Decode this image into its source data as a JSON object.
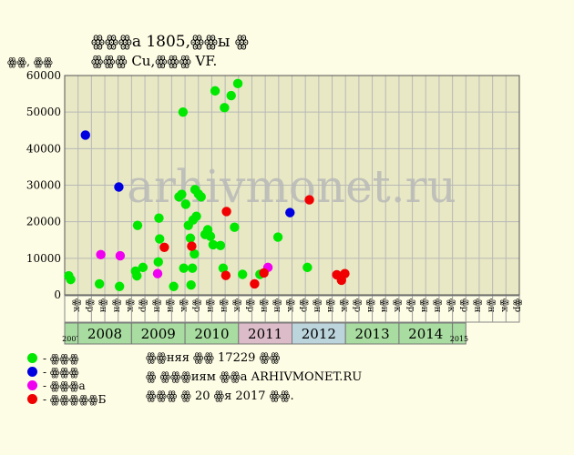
{
  "chart_data": {
    "type": "scatter",
    "title_line1": "ꙮꙮꙮa 1805,ꙮꙮы ꙮ",
    "title_line2": "ꙮꙮꙮ Cu,ꙮꙮꙮ VF.",
    "ylabel": "ꙮꙮ, ꙮꙮ",
    "watermark": "arhivmonet.ru",
    "ylim": [
      0,
      60000
    ],
    "yticks": [
      0,
      10000,
      20000,
      30000,
      40000,
      50000,
      60000
    ],
    "grid": true,
    "colors": {
      "plot_bg": "#e8e8c4",
      "grid": "#b8b8b8",
      "green": "#00e800",
      "blue": "#0000e0",
      "magenta": "#f000f0",
      "red": "#f00000",
      "year_even": "#a8dca0",
      "year_2011": "#dcbcc8",
      "year_2012": "#bcd4dc",
      "year_edge": "#a8dca0"
    },
    "years": [
      {
        "label": "2007",
        "small": true,
        "color_key": "year_edge"
      },
      {
        "label": "2008",
        "small": false,
        "color_key": "year_even"
      },
      {
        "label": "2009",
        "small": false,
        "color_key": "year_even"
      },
      {
        "label": "2010",
        "small": false,
        "color_key": "year_even"
      },
      {
        "label": "2011",
        "small": false,
        "color_key": "year_2011"
      },
      {
        "label": "2012",
        "small": false,
        "color_key": "year_2012"
      },
      {
        "label": "2013",
        "small": false,
        "color_key": "year_even"
      },
      {
        "label": "2014",
        "small": false,
        "color_key": "year_even"
      },
      {
        "label": "2015",
        "small": true,
        "color_key": "year_edge"
      }
    ],
    "month_labels": [
      "ꙮк",
      "ꙮр",
      "ꙮн",
      "ꙮн",
      "ꙮк",
      "ꙮр",
      "ꙮн",
      "ꙮн",
      "ꙮк",
      "ꙮр",
      "ꙮн",
      "ꙮн",
      "ꙮк",
      "ꙮр",
      "ꙮн",
      "ꙮн",
      "ꙮк",
      "ꙮр",
      "ꙮн",
      "ꙮн",
      "ꙮк",
      "ꙮр",
      "ꙮн",
      "ꙮн",
      "ꙮк",
      "ꙮр",
      "ꙮн",
      "ꙮн",
      "ꙮк",
      "ꙮр",
      "ꙮн",
      "ꙮн",
      "ꙮк",
      "ꙮр"
    ],
    "series": [
      {
        "name": "- ꙮꙮꙮ",
        "color_key": "green",
        "points": [
          [
            0.3,
            5200
          ],
          [
            0.45,
            4200
          ],
          [
            2.6,
            3000
          ],
          [
            4.1,
            2300
          ],
          [
            5.3,
            6500
          ],
          [
            5.4,
            5200
          ],
          [
            5.45,
            19000
          ],
          [
            5.85,
            7500
          ],
          [
            7.0,
            9000
          ],
          [
            7.05,
            21000
          ],
          [
            7.1,
            15300
          ],
          [
            8.15,
            2300
          ],
          [
            8.55,
            26800
          ],
          [
            8.75,
            27500
          ],
          [
            8.85,
            50000
          ],
          [
            8.9,
            7300
          ],
          [
            9.05,
            24800
          ],
          [
            9.25,
            19000
          ],
          [
            9.4,
            15500
          ],
          [
            9.45,
            2700
          ],
          [
            9.55,
            7300
          ],
          [
            9.6,
            20500
          ],
          [
            9.7,
            11200
          ],
          [
            9.75,
            28800
          ],
          [
            9.85,
            21500
          ],
          [
            10.0,
            27600
          ],
          [
            10.2,
            26800
          ],
          [
            10.5,
            16500
          ],
          [
            10.7,
            17800
          ],
          [
            10.9,
            16000
          ],
          [
            11.1,
            13700
          ],
          [
            11.25,
            55800
          ],
          [
            11.65,
            13500
          ],
          [
            11.85,
            7300
          ],
          [
            11.95,
            51200
          ],
          [
            12.45,
            54500
          ],
          [
            12.7,
            18500
          ],
          [
            12.95,
            57800
          ],
          [
            13.3,
            5600
          ],
          [
            14.6,
            5600
          ],
          [
            15.95,
            15800
          ],
          [
            18.15,
            7500
          ]
        ]
      },
      {
        "name": "- ꙮꙮꙮ",
        "color_key": "blue",
        "points": [
          [
            1.55,
            43700
          ],
          [
            4.05,
            29500
          ],
          [
            16.85,
            22500
          ]
        ]
      },
      {
        "name": "- ꙮꙮꙮa",
        "color_key": "magenta",
        "points": [
          [
            2.7,
            11000
          ],
          [
            4.15,
            10700
          ],
          [
            6.95,
            5800
          ],
          [
            15.2,
            7500
          ]
        ]
      },
      {
        "name": "- ꙮꙮꙮꙮꙮБ",
        "color_key": "red",
        "points": [
          [
            7.45,
            13000
          ],
          [
            9.5,
            13300
          ],
          [
            12.1,
            22800
          ],
          [
            12.05,
            5300
          ],
          [
            14.2,
            3000
          ],
          [
            14.9,
            6000
          ],
          [
            18.3,
            26000
          ],
          [
            20.35,
            5500
          ],
          [
            20.7,
            4000
          ],
          [
            20.95,
            5800
          ]
        ]
      }
    ]
  },
  "info": {
    "line1": "ꙮꙮняя ꙮꙮ 17229 ꙮꙮ",
    "line2": "ꙮ ꙮꙮꙮиям ꙮꙮa ARHIVMONET.RU",
    "line3": "ꙮꙮꙮ ꙮ 20 ꙮя 2017 ꙮꙮ."
  }
}
